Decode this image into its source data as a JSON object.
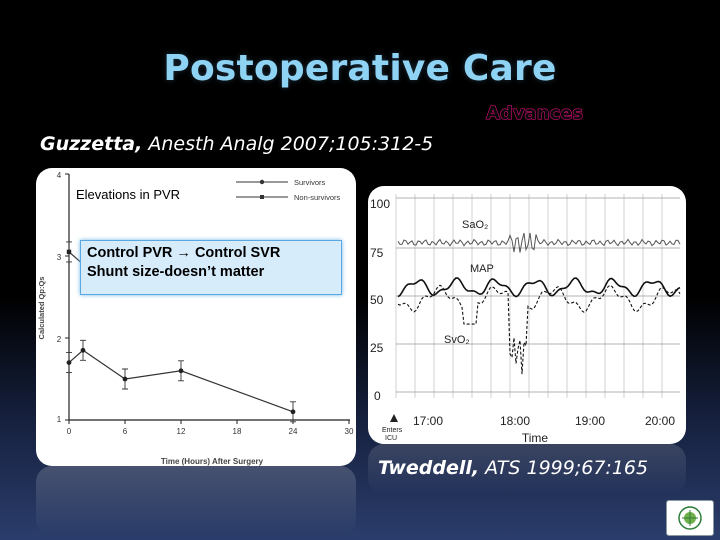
{
  "slide": {
    "title": "Postoperative Care",
    "advances": "Advances",
    "ref1_author": "Guzzetta,",
    "ref1_citation": " Anesth Analg 2007;105:312-5",
    "ref2_author": "Tweddell,",
    "ref2_citation": " ATS 1999;67:165",
    "callout_line1": "Control PVR → Control SVR",
    "callout_line2": "Shunt size-doesn’t  matter"
  },
  "left_chart": {
    "annotation": "Elevations in PVR",
    "legend": [
      "Survivors",
      "Non-survivors"
    ],
    "ylabel": "Calculated  Qp:Qs",
    "xlabel": "Time   (Hours)   After   Surgery",
    "yticks": [
      "1",
      "2",
      "3",
      "4"
    ],
    "xticks": [
      "0",
      "6",
      "12",
      "18",
      "24",
      "30"
    ]
  },
  "right_chart": {
    "yticks": [
      "100",
      "75",
      "50",
      "25",
      "0"
    ],
    "xticks": [
      "17:00",
      "18:00",
      "19:00",
      "20:00"
    ],
    "xlabel": "Time",
    "enters_label_1": "Enters",
    "enters_label_2": "ICU",
    "series_labels": [
      "SaO₂",
      "MAP",
      "SvO₂"
    ]
  },
  "chart_data": [
    {
      "type": "line",
      "ylabel": "Calculated  Qp:Qs",
      "xlabel": "Time   (Hours)   After   Surgery",
      "xlim": [
        0,
        30
      ],
      "ylim": [
        1,
        4
      ],
      "series": [
        {
          "name": "Survivors",
          "x": [
            0,
            1.5,
            6,
            12,
            24
          ],
          "y": [
            1.7,
            1.85,
            1.5,
            1.6,
            1.1
          ]
        },
        {
          "name": "Non-survivors",
          "x": [
            0,
            1.5
          ],
          "y": [
            3.05,
            2.9
          ]
        }
      ]
    },
    {
      "type": "line",
      "xlabel": "Time",
      "ylim": [
        0,
        100
      ],
      "x_ticks": [
        "17:00",
        "18:00",
        "19:00",
        "20:00"
      ],
      "series": [
        {
          "name": "SaO₂",
          "y_approx": 77
        },
        {
          "name": "MAP",
          "y_approx": 55
        },
        {
          "name": "SvO₂",
          "y_approx": 45
        }
      ]
    }
  ]
}
